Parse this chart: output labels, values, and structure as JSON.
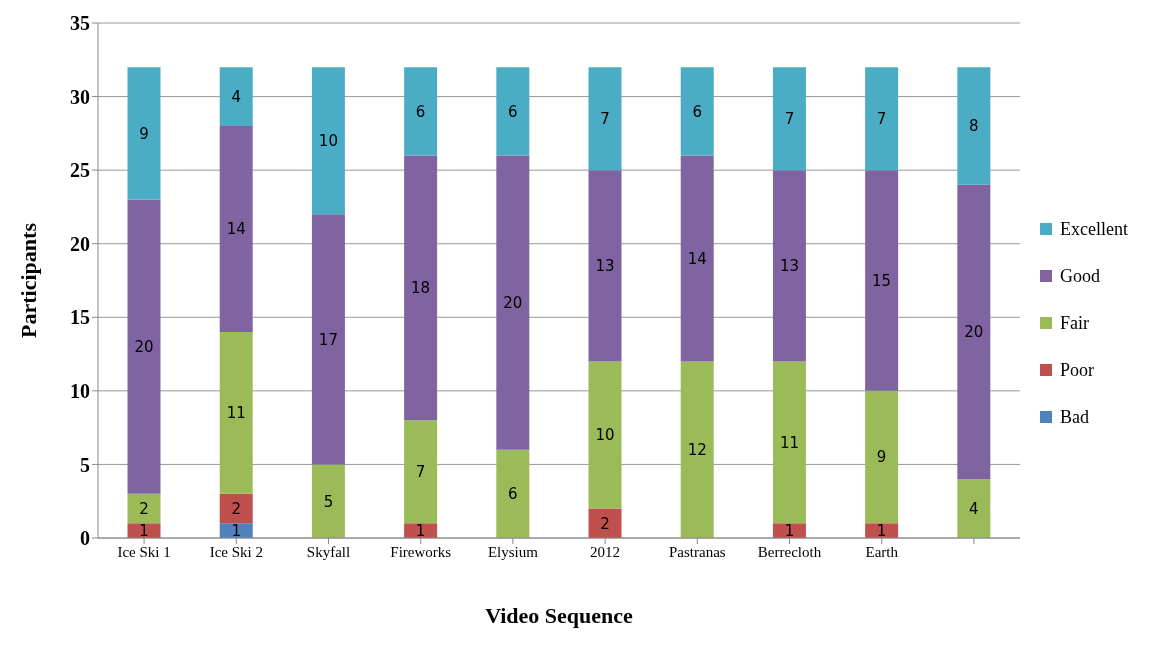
{
  "chart_data": {
    "type": "bar",
    "stacked": true,
    "xlabel": "Video Sequence",
    "ylabel": "Participants",
    "categories": [
      "Ice Ski 1",
      "Ice Ski 2",
      "Skyfall",
      "Fireworks",
      "Elysium",
      "2012",
      "Pastranas",
      "Berrecloth",
      "Earth",
      null
    ],
    "series": [
      {
        "name": "Bad",
        "color": "#4f81bd",
        "values": [
          null,
          1,
          null,
          null,
          null,
          null,
          null,
          null,
          null,
          null
        ]
      },
      {
        "name": "Poor",
        "color": "#c0504d",
        "values": [
          1,
          2,
          null,
          1,
          null,
          2,
          null,
          1,
          1,
          null
        ]
      },
      {
        "name": "Fair",
        "color": "#9bbb59",
        "values": [
          2,
          11,
          5,
          7,
          6,
          10,
          12,
          11,
          9,
          4
        ]
      },
      {
        "name": "Good",
        "color": "#8064a2",
        "values": [
          20,
          14,
          17,
          18,
          20,
          13,
          14,
          13,
          15,
          20
        ]
      },
      {
        "name": "Excellent",
        "color": "#4bacc6",
        "values": [
          9,
          4,
          10,
          6,
          6,
          7,
          6,
          7,
          7,
          8
        ]
      }
    ],
    "ylim": [
      0,
      35
    ],
    "yticks": [
      0,
      5,
      10,
      15,
      20,
      25,
      30,
      35
    ],
    "grid": "y",
    "legend": "right",
    "data_labels": true
  }
}
